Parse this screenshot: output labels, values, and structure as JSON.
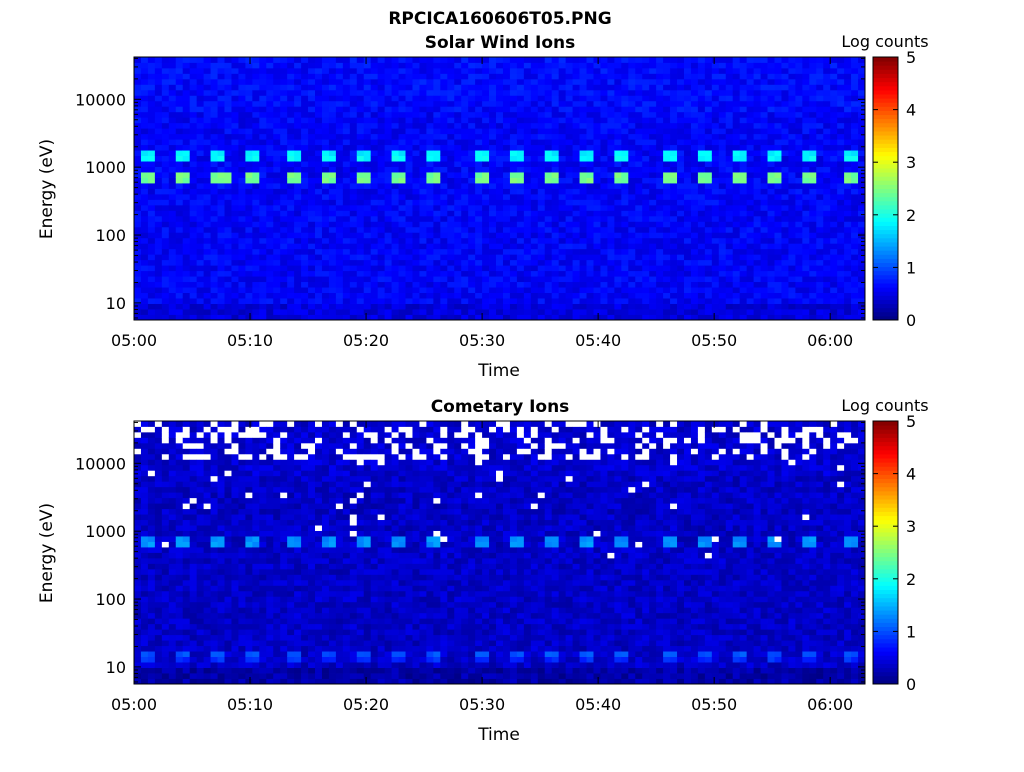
{
  "figure": {
    "title": "RPCICA160606T05.PNG"
  },
  "chart_data": [
    {
      "type": "heatmap",
      "title": "Solar Wind Ions",
      "xlabel": "Time",
      "ylabel": "Energy (eV)",
      "yscale": "log",
      "xlim": [
        "05:00",
        "06:03"
      ],
      "ylim": [
        5.6,
        42000
      ],
      "xticks": [
        "05:00",
        "05:10",
        "05:20",
        "05:30",
        "05:40",
        "05:50",
        "06:00"
      ],
      "yticks": [
        "10",
        "100",
        "1000",
        "10000"
      ],
      "colorbar": {
        "label": "Log counts",
        "range": [
          0,
          5
        ],
        "ticks": [
          "0",
          "1",
          "2",
          "3",
          "4",
          "5"
        ],
        "colormap": "jet"
      },
      "background_log_counts": 0.6,
      "grid": false,
      "peaks": [
        {
          "energy_eV": 700,
          "log_counts": 2.6,
          "times": [
            "05:01",
            "05:04",
            "05:07",
            "05:08",
            "05:10",
            "05:14",
            "05:17",
            "05:20",
            "05:23",
            "05:26",
            "05:30",
            "05:33",
            "05:36",
            "05:39",
            "05:42",
            "05:46",
            "05:49",
            "05:52",
            "05:55",
            "05:58",
            "06:02"
          ]
        },
        {
          "energy_eV": 1450,
          "log_counts": 2.0,
          "times": [
            "05:01",
            "05:04",
            "05:07",
            "05:10",
            "05:14",
            "05:17",
            "05:20",
            "05:23",
            "05:26",
            "05:30",
            "05:33",
            "05:36",
            "05:39",
            "05:42",
            "05:46",
            "05:49",
            "05:52",
            "05:55",
            "05:58",
            "06:02"
          ]
        }
      ]
    },
    {
      "type": "heatmap",
      "title": "Cometary Ions",
      "xlabel": "Time",
      "ylabel": "Energy (eV)",
      "yscale": "log",
      "xlim": [
        "05:00",
        "06:03"
      ],
      "ylim": [
        5.6,
        42000
      ],
      "xticks": [
        "05:00",
        "05:10",
        "05:20",
        "05:30",
        "05:40",
        "05:50",
        "06:00"
      ],
      "yticks": [
        "10",
        "100",
        "1000",
        "10000"
      ],
      "colorbar": {
        "label": "Log counts",
        "range": [
          0,
          5
        ],
        "ticks": [
          "0",
          "1",
          "2",
          "3",
          "4",
          "5"
        ],
        "colormap": "jet"
      },
      "background_log_counts": 0.35,
      "grid": false,
      "no_data_color": "#ffffff",
      "peaks": [
        {
          "energy_eV": 700,
          "log_counts": 1.5,
          "times": [
            "05:01",
            "05:04",
            "05:07",
            "05:10",
            "05:14",
            "05:17",
            "05:20",
            "05:23",
            "05:26",
            "05:30",
            "05:33",
            "05:36",
            "05:39",
            "05:42",
            "05:46",
            "05:49",
            "05:52",
            "05:55",
            "05:58",
            "06:02"
          ]
        },
        {
          "energy_eV": 15,
          "log_counts": 1.1,
          "times": [
            "05:01",
            "05:04",
            "05:07",
            "05:10",
            "05:14",
            "05:17",
            "05:20",
            "05:23",
            "05:26",
            "05:30",
            "05:33",
            "05:36",
            "05:39",
            "05:42",
            "05:46",
            "05:49",
            "05:52",
            "05:55",
            "05:58",
            "06:02"
          ]
        }
      ]
    }
  ]
}
